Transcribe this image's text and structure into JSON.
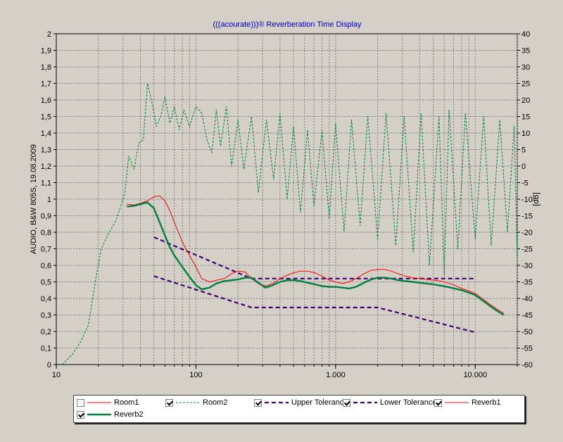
{
  "chart_data": {
    "type": "line",
    "title": "(((acourate)))® Reverberation Time Display",
    "ylabel_left": "AUDIO, B&W 805S, 19.08.2009",
    "ylabel_right": "[dB]",
    "x_scale": "log",
    "xlim": [
      10,
      20000
    ],
    "ylim_left": [
      0,
      2
    ],
    "ylim_right": [
      -60,
      40
    ],
    "grid": true,
    "x_ticks": [
      {
        "value": 10,
        "label": "10"
      },
      {
        "value": 100,
        "label": "100"
      },
      {
        "value": 1000,
        "label": "1.000"
      },
      {
        "value": 10000,
        "label": "10.000"
      }
    ],
    "y_ticks_left": [
      "0",
      "0,1",
      "0,2",
      "0,3",
      "0,4",
      "0,5",
      "0,6",
      "0,7",
      "0,8",
      "0,9",
      "1",
      "1,1",
      "1,2",
      "1,3",
      "1,4",
      "1,5",
      "1,6",
      "1,7",
      "1,8",
      "1,9",
      "2"
    ],
    "y_ticks_right": [
      "-60",
      "-55",
      "-50",
      "-45",
      "-40",
      "-35",
      "-30",
      "-25",
      "-20",
      "-15",
      "-10",
      "-5",
      "0",
      "5",
      "10",
      "15",
      "20",
      "25",
      "30",
      "35",
      "40"
    ],
    "series": [
      {
        "name": "Room1",
        "checked": false,
        "color": "#ff0000",
        "style": "solid",
        "width": 1,
        "axis": "left",
        "x": [],
        "y": []
      },
      {
        "name": "Room2",
        "checked": true,
        "color": "#008040",
        "style": "dashed",
        "width": 1,
        "axis": "right",
        "x": [
          11,
          13,
          15,
          17,
          19,
          21,
          24,
          27,
          29,
          31,
          33,
          36,
          39,
          42,
          45,
          48,
          52,
          56,
          60,
          65,
          70,
          76,
          82,
          90,
          100,
          110,
          120,
          130,
          140,
          150,
          165,
          180,
          200,
          220,
          250,
          280,
          320,
          360,
          400,
          450,
          500,
          560,
          630,
          700,
          800,
          900,
          1000,
          1150,
          1300,
          1500,
          1700,
          2000,
          2300,
          2700,
          3100,
          3600,
          4100,
          4700,
          5500,
          6000,
          6500,
          7500,
          8500,
          10000,
          11500,
          13000,
          15000,
          17000,
          19000,
          20000
        ],
        "y": [
          -60,
          -57,
          -53,
          -48,
          -35,
          -25,
          -20,
          -16,
          -12,
          -8,
          3,
          -1,
          7,
          8,
          25,
          20,
          12,
          15,
          21,
          13,
          18,
          11,
          17,
          12,
          18,
          16,
          8,
          4,
          17,
          6,
          18,
          0,
          14,
          -1,
          15,
          -8,
          14,
          -4,
          16,
          -10,
          12,
          -14,
          11,
          -12,
          11,
          -16,
          13,
          -20,
          14,
          -18,
          15,
          -22,
          16,
          -24,
          15,
          -26,
          16,
          -30,
          15,
          -33,
          17,
          -25,
          16,
          -22,
          15,
          -24,
          14,
          -20,
          12,
          -28
        ]
      },
      {
        "name": "Upper Tolerance",
        "checked": true,
        "color": "#40006e",
        "style": "dashed-bold",
        "width": 2.2,
        "axis": "left",
        "x": [
          50,
          250,
          10000
        ],
        "y": [
          0.77,
          0.52,
          0.52
        ]
      },
      {
        "name": "Lower Tolerance",
        "checked": true,
        "color": "#40006e",
        "style": "dashed-bold",
        "width": 2.2,
        "axis": "left",
        "x": [
          50,
          250,
          2000,
          10000
        ],
        "y": [
          0.535,
          0.345,
          0.345,
          0.195
        ]
      },
      {
        "name": "Reverb1",
        "checked": true,
        "color": "#ff0000",
        "style": "solid",
        "width": 1,
        "axis": "left",
        "x": [
          32,
          36,
          40,
          45,
          50,
          55,
          60,
          65,
          70,
          80,
          90,
          100,
          110,
          125,
          140,
          160,
          180,
          200,
          225,
          250,
          280,
          315,
          355,
          400,
          450,
          500,
          560,
          630,
          710,
          800,
          900,
          1000,
          1120,
          1250,
          1400,
          1600,
          1800,
          2000,
          2250,
          2500,
          2800,
          3150,
          3550,
          4000,
          4500,
          5000,
          5600,
          6300,
          7100,
          8000,
          9000,
          10000,
          11200,
          12500,
          14000,
          16000
        ],
        "y": [
          0.97,
          0.965,
          0.975,
          0.99,
          1.015,
          1.02,
          0.99,
          0.93,
          0.86,
          0.74,
          0.66,
          0.59,
          0.52,
          0.5,
          0.51,
          0.52,
          0.55,
          0.565,
          0.56,
          0.52,
          0.49,
          0.475,
          0.49,
          0.52,
          0.54,
          0.555,
          0.565,
          0.565,
          0.555,
          0.535,
          0.51,
          0.5,
          0.49,
          0.5,
          0.52,
          0.55,
          0.57,
          0.575,
          0.575,
          0.565,
          0.55,
          0.535,
          0.525,
          0.52,
          0.515,
          0.51,
          0.505,
          0.495,
          0.48,
          0.46,
          0.445,
          0.43,
          0.4,
          0.37,
          0.34,
          0.31
        ]
      },
      {
        "name": "Reverb2",
        "checked": true,
        "color": "#008040",
        "style": "solid",
        "width": 2.4,
        "axis": "left",
        "x": [
          32,
          36,
          40,
          45,
          50,
          55,
          60,
          65,
          70,
          80,
          90,
          100,
          110,
          125,
          140,
          160,
          180,
          200,
          225,
          250,
          280,
          315,
          355,
          400,
          450,
          500,
          560,
          630,
          710,
          800,
          900,
          1000,
          1120,
          1250,
          1400,
          1600,
          1800,
          2000,
          2250,
          2500,
          2800,
          3150,
          3550,
          4000,
          4500,
          5000,
          5600,
          6300,
          7100,
          8000,
          9000,
          10000,
          11200,
          12500,
          14000,
          16000
        ],
        "y": [
          0.955,
          0.96,
          0.97,
          0.98,
          0.945,
          0.86,
          0.78,
          0.71,
          0.66,
          0.59,
          0.53,
          0.48,
          0.455,
          0.465,
          0.49,
          0.505,
          0.51,
          0.515,
          0.525,
          0.525,
          0.495,
          0.465,
          0.48,
          0.5,
          0.51,
          0.51,
          0.505,
          0.495,
          0.485,
          0.475,
          0.47,
          0.47,
          0.465,
          0.46,
          0.47,
          0.495,
          0.515,
          0.525,
          0.525,
          0.52,
          0.51,
          0.505,
          0.5,
          0.495,
          0.49,
          0.485,
          0.478,
          0.47,
          0.46,
          0.45,
          0.435,
          0.42,
          0.39,
          0.36,
          0.33,
          0.3
        ]
      }
    ]
  }
}
